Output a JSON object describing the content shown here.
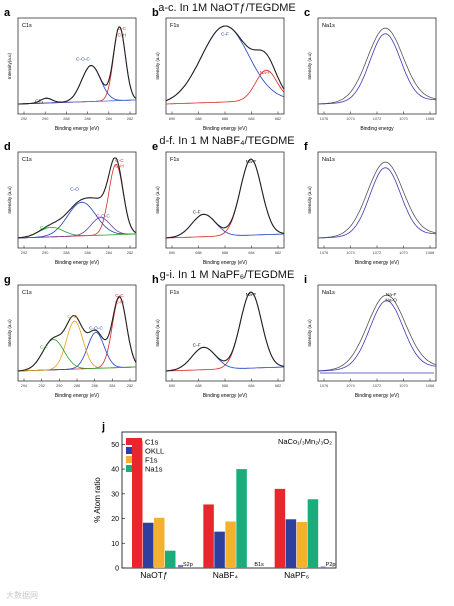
{
  "headers": [
    "a-c.  In 1M NaOTƒ/TEGDME",
    "d-f.  In 1 M NaBF₄/TEGDME",
    "g-i.  In 1 M NaPF₆/TEGDME"
  ],
  "spectra": [
    {
      "letter": "a",
      "label": "C1s",
      "xlabel": "Binding energy (eV)",
      "ylabel": "Intensity(a.u)",
      "ticks": [
        "292",
        "290",
        "288",
        "286",
        "284",
        "282"
      ],
      "peaks": [
        {
          "text": "C-C",
          "color": "#d62728"
        },
        {
          "text": "C-H",
          "color": "#d62728"
        },
        {
          "text": "C-O-C",
          "color": "#1f3fbf"
        },
        {
          "text": "CF₃",
          "color": "#333333"
        }
      ]
    },
    {
      "letter": "b",
      "label": "F1s",
      "xlabel": "Binding energy (eV)",
      "ylabel": "Intensity (a.u)",
      "ticks": [
        "690",
        "688",
        "686",
        "684",
        "682"
      ],
      "peaks": [
        {
          "text": "C-F",
          "color": "#1f3fbf"
        },
        {
          "text": "Na-F",
          "color": "#d62728"
        }
      ]
    },
    {
      "letter": "c",
      "label": "Na1s",
      "xlabel": "Binding energy",
      "ylabel": "Intensity (a.u)",
      "ticks": [
        "1076",
        "1074",
        "1072",
        "1070",
        "1068"
      ],
      "peaks": []
    },
    {
      "letter": "d",
      "label": "C1s",
      "xlabel": "Binding energy (eV)",
      "ylabel": "Intensity (a.u)",
      "ticks": [
        "292",
        "290",
        "288",
        "286",
        "284",
        "282"
      ],
      "peaks": [
        {
          "text": "C-C",
          "color": "#d62728"
        },
        {
          "text": "C-H",
          "color": "#d62728"
        },
        {
          "text": "C-O",
          "color": "#1f3fbf"
        },
        {
          "text": "C-O-C",
          "color": "#6b3fa0"
        },
        {
          "text": "C-F",
          "color": "#2ca02c"
        }
      ]
    },
    {
      "letter": "e",
      "label": "F1s",
      "xlabel": "Binding energy (eV)",
      "ylabel": "Intensity (a.u)",
      "ticks": [
        "690",
        "688",
        "686",
        "684",
        "682"
      ],
      "peaks": [
        {
          "text": "Na-F",
          "color": "#111111"
        },
        {
          "text": "C-F",
          "color": "#111111"
        }
      ]
    },
    {
      "letter": "f",
      "label": "Na1s",
      "xlabel": "Binding energy (eV)",
      "ylabel": "Intensity (a.u)",
      "ticks": [
        "1076",
        "1074",
        "1072",
        "1070",
        "1068"
      ],
      "peaks": []
    },
    {
      "letter": "g",
      "label": "C1s",
      "xlabel": "Binding energy (eV)",
      "ylabel": "Intensity (a.u)",
      "ticks": [
        "294",
        "292",
        "290",
        "288",
        "286",
        "284",
        "282"
      ],
      "peaks": [
        {
          "text": "C-C",
          "color": "#d62728"
        },
        {
          "text": "C-H",
          "color": "#d62728"
        },
        {
          "text": "C-O-C",
          "color": "#1f3fbf"
        },
        {
          "text": "C=O",
          "color": "#e6a117"
        },
        {
          "text": "C-F",
          "color": "#2ca02c"
        }
      ]
    },
    {
      "letter": "h",
      "label": "F1s",
      "xlabel": "Binding energy (eV)",
      "ylabel": "Intensity (a.u)",
      "ticks": [
        "690",
        "688",
        "686",
        "684",
        "682"
      ],
      "peaks": [
        {
          "text": "Na-F",
          "color": "#111111"
        },
        {
          "text": "C-F",
          "color": "#111111"
        }
      ]
    },
    {
      "letter": "i",
      "label": "Na1s",
      "xlabel": "Binding energy (eV)",
      "ylabel": "Intensity (a.u)",
      "ticks": [
        "1076",
        "1074",
        "1072",
        "1070",
        "1068"
      ],
      "peaks": [
        {
          "text": "Na-F",
          "color": "#111111"
        },
        {
          "text": "Na-O",
          "color": "#111111"
        }
      ]
    }
  ],
  "chart_data": {
    "type": "bar",
    "letter": "j",
    "annotation": "NaCo₁/₃Mn₂/₃O₂",
    "ylabel": "% Atom ratio",
    "ylim": [
      0,
      55
    ],
    "yticks": [
      0,
      10,
      20,
      30,
      40,
      50
    ],
    "grid": false,
    "legend_position": "top-left",
    "categories": [
      "NaOTƒ",
      "NaBF₄",
      "NaPF₆"
    ],
    "series": [
      {
        "name": "C1s",
        "color": "#e8262b",
        "values": [
          51.5,
          25.7,
          32.0
        ]
      },
      {
        "name": "OKLL",
        "color": "#2e3f9e",
        "values": [
          18.3,
          14.7,
          19.7
        ]
      },
      {
        "name": "F1s",
        "color": "#f2b230",
        "values": [
          20.3,
          18.8,
          18.6
        ]
      },
      {
        "name": "Na1s",
        "color": "#1aac7a",
        "values": [
          7.0,
          40.0,
          27.8
        ]
      }
    ],
    "extra_bars": [
      {
        "label": "S2p",
        "category_index": 0,
        "value": 1.2,
        "color": "#8e6fb8"
      },
      {
        "label": "B1s",
        "category_index": 1,
        "value": 0,
        "color": "#8e6fb8"
      },
      {
        "label": "P2p",
        "category_index": 2,
        "value": 0.6,
        "color": "#8e6fb8"
      }
    ]
  },
  "watermark": "大数据网"
}
